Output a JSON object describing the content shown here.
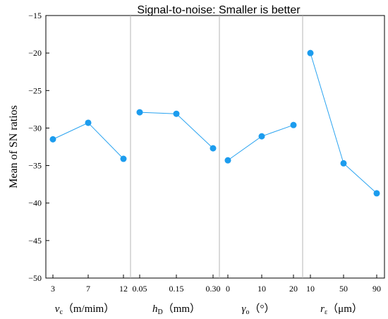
{
  "chart_data": {
    "type": "line",
    "title": "Signal-to-noise: Smaller is better",
    "ylabel": "Mean of SN ratios",
    "ylim": [
      -50,
      -15
    ],
    "yticks": [
      -15,
      -20,
      -25,
      -30,
      -35,
      -40,
      -45,
      -50
    ],
    "grid": false,
    "line_color": "#29a3f0",
    "marker_color": "#1c9cee",
    "panel_divider_color": "#b5b5b5",
    "panels": [
      {
        "label_main": "v",
        "label_sub": "c",
        "label_rest": "（m/mim）",
        "categories": [
          "3",
          "7",
          "12"
        ],
        "values": [
          -31.5,
          -29.3,
          -34.1
        ]
      },
      {
        "label_main": "h",
        "label_sub": "D",
        "label_rest": "（mm）",
        "categories": [
          "0.05",
          "0.15",
          "0.30"
        ],
        "values": [
          -27.9,
          -28.1,
          -32.7
        ]
      },
      {
        "label_main": "γ",
        "label_sub": "o",
        "label_rest": "（°）",
        "categories": [
          "0",
          "10",
          "20"
        ],
        "values": [
          -34.3,
          -31.1,
          -29.6
        ]
      },
      {
        "label_main": "r",
        "label_sub": "ε",
        "label_rest": "（μm）",
        "categories": [
          "10",
          "50",
          "90"
        ],
        "values": [
          -20.0,
          -34.7,
          -38.7
        ]
      }
    ]
  }
}
